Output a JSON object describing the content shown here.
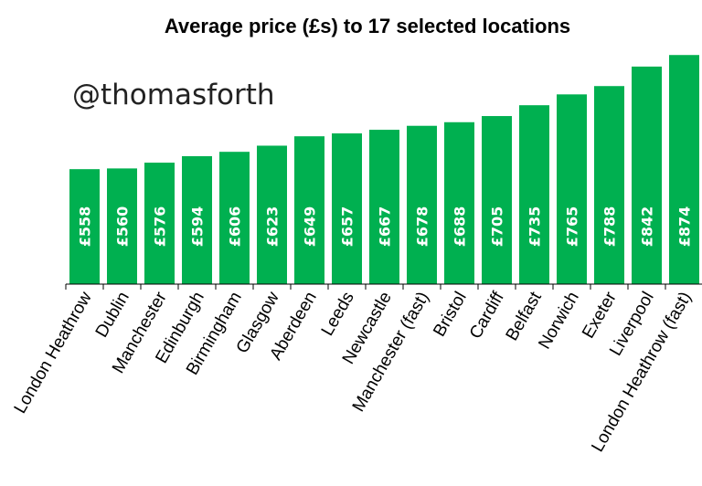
{
  "chart_data": {
    "type": "bar",
    "title": "Average price (£s) to 17 selected locations",
    "watermark": "@thomasforth",
    "categories": [
      "London Heathrow",
      "Dublin",
      "Manchester",
      "Edinburgh",
      "Birmingham",
      "Glasgow",
      "Aberdeen",
      "Leeds",
      "Newcastle",
      "Manchester (fast)",
      "Bristol",
      "Cardiff",
      "Belfast",
      "Norwich",
      "Exeter",
      "Liverpool",
      "London Heathrow (fast)"
    ],
    "values": [
      558,
      560,
      576,
      594,
      606,
      623,
      649,
      657,
      667,
      678,
      688,
      705,
      735,
      765,
      788,
      842,
      874
    ],
    "value_labels": [
      "£558",
      "£560",
      "£576",
      "£594",
      "£606",
      "£623",
      "£649",
      "£657",
      "£667",
      "£678",
      "£688",
      "£705",
      "£735",
      "£765",
      "£788",
      "£842",
      "£874"
    ],
    "bar_color": "#00b050",
    "xlabel": "",
    "ylabel": "",
    "grid": false
  }
}
